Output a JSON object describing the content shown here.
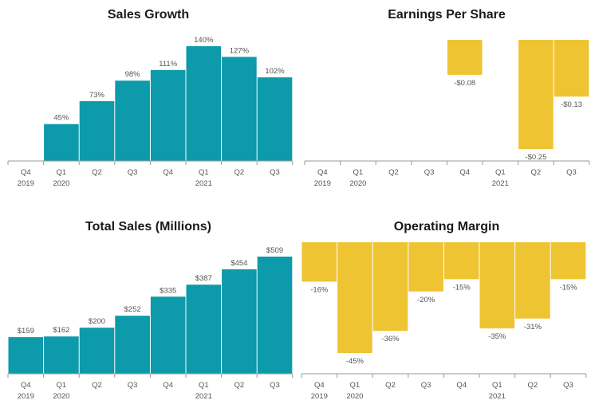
{
  "colors": {
    "teal": "#0d9aab",
    "yellow": "#eec433",
    "axis": "#9a9a9a",
    "label": "#555555"
  },
  "chart_data": [
    {
      "id": "sales-growth",
      "type": "bar",
      "title": "Sales Growth",
      "color": "#0d9aab",
      "quarters": [
        "Q4",
        "Q1",
        "Q2",
        "Q3",
        "Q4",
        "Q1",
        "Q2",
        "Q3"
      ],
      "years": [
        "2019",
        "2020",
        "",
        "",
        "",
        "2021",
        "",
        ""
      ],
      "values": [
        null,
        45,
        73,
        98,
        111,
        140,
        127,
        102
      ],
      "labels": [
        "",
        "45%",
        "73%",
        "98%",
        "111%",
        "140%",
        "127%",
        "102%"
      ],
      "ylim": [
        0,
        140
      ]
    },
    {
      "id": "earnings-per-share",
      "type": "bar",
      "title": "Earnings Per Share",
      "color": "#eec433",
      "quarters": [
        "Q4",
        "Q1",
        "Q2",
        "Q3",
        "Q4",
        "Q1",
        "Q2",
        "Q3"
      ],
      "years": [
        "2019",
        "2020",
        "",
        "",
        "",
        "2021",
        "",
        ""
      ],
      "values": [
        null,
        null,
        null,
        null,
        -0.08,
        null,
        -0.25,
        -0.13
      ],
      "labels": [
        "",
        "",
        "",
        "",
        "-$0.08",
        "",
        "-$0.25",
        "-$0.13"
      ],
      "ylim": [
        -0.25,
        0
      ]
    },
    {
      "id": "total-sales",
      "type": "bar",
      "title": "Total Sales (Millions)",
      "color": "#0d9aab",
      "quarters": [
        "Q4",
        "Q1",
        "Q2",
        "Q3",
        "Q4",
        "Q1",
        "Q2",
        "Q3"
      ],
      "years": [
        "2019",
        "2020",
        "",
        "",
        "",
        "2021",
        "",
        ""
      ],
      "values": [
        159,
        162,
        200,
        252,
        335,
        387,
        454,
        509
      ],
      "labels": [
        "$159",
        "$162",
        "$200",
        "$252",
        "$335",
        "$387",
        "$454",
        "$509"
      ],
      "ylim": [
        0,
        509
      ]
    },
    {
      "id": "operating-margin",
      "type": "bar",
      "title": "Operating Margin",
      "color": "#eec433",
      "quarters": [
        "Q4",
        "Q1",
        "Q2",
        "Q3",
        "Q4",
        "Q1",
        "Q2",
        "Q3"
      ],
      "years": [
        "2019",
        "2020",
        "",
        "",
        "",
        "2021",
        "",
        ""
      ],
      "values": [
        -16,
        -45,
        -36,
        -20,
        -15,
        -35,
        -31,
        -15
      ],
      "labels": [
        "-16%",
        "-45%",
        "-36%",
        "-20%",
        "-15%",
        "-35%",
        "-31%",
        "-15%"
      ],
      "ylim": [
        -45,
        0
      ]
    }
  ]
}
